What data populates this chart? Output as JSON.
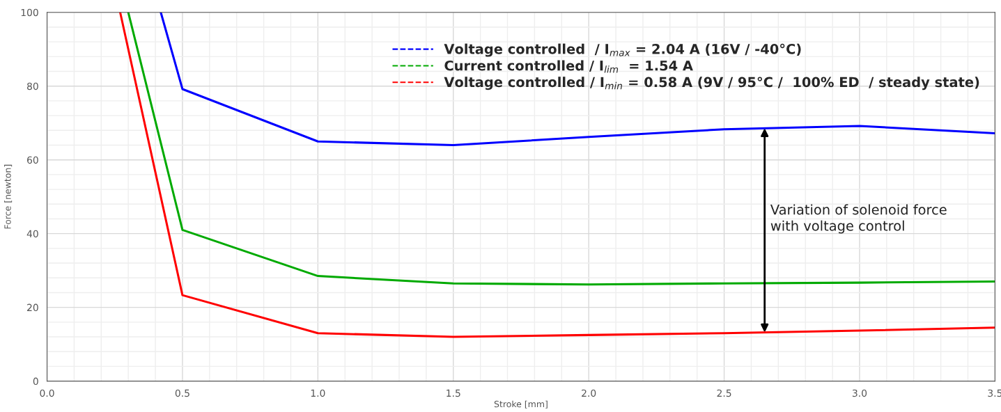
{
  "chart_data": {
    "type": "line",
    "xlabel": "Stroke [mm]",
    "ylabel": "Force [newton]",
    "xlim": [
      0,
      3.5
    ],
    "ylim": [
      0,
      100
    ],
    "xticks": [
      {
        "value": 0,
        "label": "0.0"
      },
      0.5,
      {
        "value": 1,
        "label": "1.0"
      },
      1.5,
      {
        "value": 2,
        "label": "2.0"
      },
      2.5,
      {
        "value": 3,
        "label": "3.0"
      },
      3.5
    ],
    "yticks": [
      0,
      20,
      40,
      60,
      80,
      100
    ],
    "grid": true,
    "legend": "top right",
    "marker": "none",
    "line_style": "solid",
    "series": [
      {
        "name": "Voltage controlled  / I$_{max}$ = 2.04 A (16V / -40°C)",
        "color": "#0000ff",
        "x": [
          0.42,
          0.5,
          1.0,
          1.5,
          2.0,
          2.5,
          3.0,
          3.5
        ],
        "values": [
          100,
          79.2,
          65,
          64,
          66.2,
          68.3,
          69.2,
          67.2
        ]
      },
      {
        "name": "Current controlled / I$_{lim}$  = 1.54 A",
        "color": "#00aa00",
        "x": [
          0.3,
          0.5,
          1.0,
          1.5,
          2.0,
          2.5,
          3.0,
          3.5
        ],
        "values": [
          100,
          41,
          28.5,
          26.5,
          26.2,
          26.5,
          26.7,
          27
        ]
      },
      {
        "name": "Voltage controlled / I$_{min}$ = 0.58 A (9V / 95°C /  100% ED  / steady state)",
        "color": "#ff0000",
        "x": [
          0.27,
          0.5,
          1.0,
          1.5,
          2.0,
          2.5,
          3.0,
          3.5
        ],
        "values": [
          100,
          23.3,
          13,
          12,
          12.5,
          13,
          13.7,
          14.5
        ]
      }
    ],
    "annotations": [
      "Variation of solenoid force\nwith voltage control"
    ]
  }
}
